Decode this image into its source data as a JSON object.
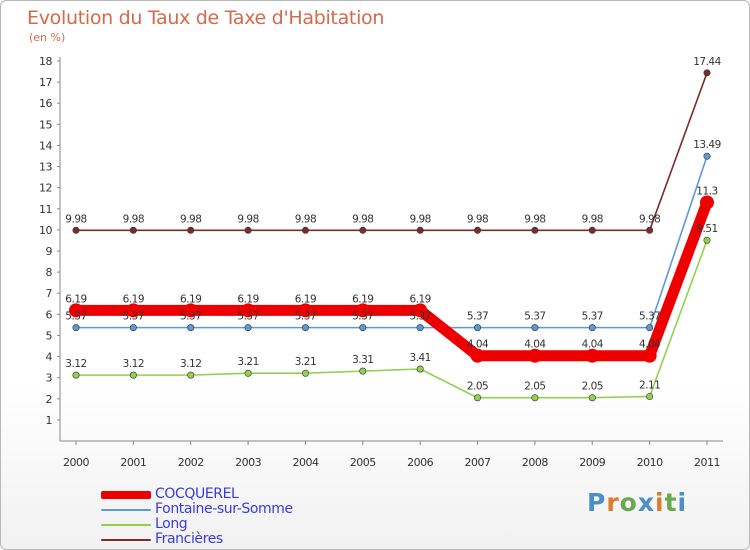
{
  "title": "Evolution du Taux de Taxe d'Habitation",
  "subtitle": "(en %)",
  "brand": {
    "text": "Proxiti",
    "letter_colors": [
      "#4a90c8",
      "#e07a2c",
      "#6aa84f",
      "#4a90c8",
      "#e07a2c",
      "#6aa84f",
      "#4a90c8"
    ]
  },
  "chart_data": {
    "type": "line",
    "title": "Evolution du Taux de Taxe d'Habitation",
    "ylabel": "(en %)",
    "xlabel": "",
    "ylim": [
      0,
      18
    ],
    "yticks": [
      1,
      2,
      3,
      4,
      5,
      6,
      7,
      8,
      9,
      10,
      11,
      12,
      13,
      14,
      15,
      16,
      17,
      18
    ],
    "categories": [
      "2000",
      "2001",
      "2002",
      "2003",
      "2004",
      "2005",
      "2006",
      "2007",
      "2008",
      "2009",
      "2010",
      "2011"
    ],
    "grid": false,
    "legend": "bottom-left",
    "series": [
      {
        "name": "COCQUEREL",
        "color": "#ee0000",
        "emphasis": true,
        "values": [
          6.19,
          6.19,
          6.19,
          6.19,
          6.19,
          6.19,
          6.19,
          4.04,
          4.04,
          4.04,
          4.04,
          11.3
        ],
        "labels": [
          "6.19",
          "6.19",
          "6.19",
          "6.19",
          "6.19",
          "6.19",
          "6.19",
          "4.04",
          "4.04",
          "4.04",
          "4.04",
          "11.3"
        ]
      },
      {
        "name": "Fontaine-sur-Somme",
        "color": "#5b9bd5",
        "emphasis": false,
        "values": [
          5.37,
          5.37,
          5.37,
          5.37,
          5.37,
          5.37,
          5.37,
          5.37,
          5.37,
          5.37,
          5.37,
          13.49
        ],
        "labels": [
          "5.37",
          "5.37",
          "5.37",
          "5.37",
          "5.37",
          "5.37",
          "5.37",
          "5.37",
          "5.37",
          "5.37",
          "5.37",
          "13.49"
        ]
      },
      {
        "name": "Long",
        "color": "#92d050",
        "emphasis": false,
        "values": [
          3.12,
          3.12,
          3.12,
          3.21,
          3.21,
          3.31,
          3.41,
          2.05,
          2.05,
          2.05,
          2.11,
          9.51
        ],
        "labels": [
          "3.12",
          "3.12",
          "3.12",
          "3.21",
          "3.21",
          "3.31",
          "3.41",
          "2.05",
          "2.05",
          "2.05",
          "2.11",
          "9.51"
        ]
      },
      {
        "name": "Francières",
        "color": "#7b2c2c",
        "emphasis": false,
        "values": [
          9.98,
          9.98,
          9.98,
          9.98,
          9.98,
          9.98,
          9.98,
          9.98,
          9.98,
          9.98,
          9.98,
          17.44
        ],
        "labels": [
          "9.98",
          "9.98",
          "9.98",
          "9.98",
          "9.98",
          "9.98",
          "9.98",
          "9.98",
          "9.98",
          "9.98",
          "9.98",
          "17.44"
        ]
      }
    ]
  }
}
